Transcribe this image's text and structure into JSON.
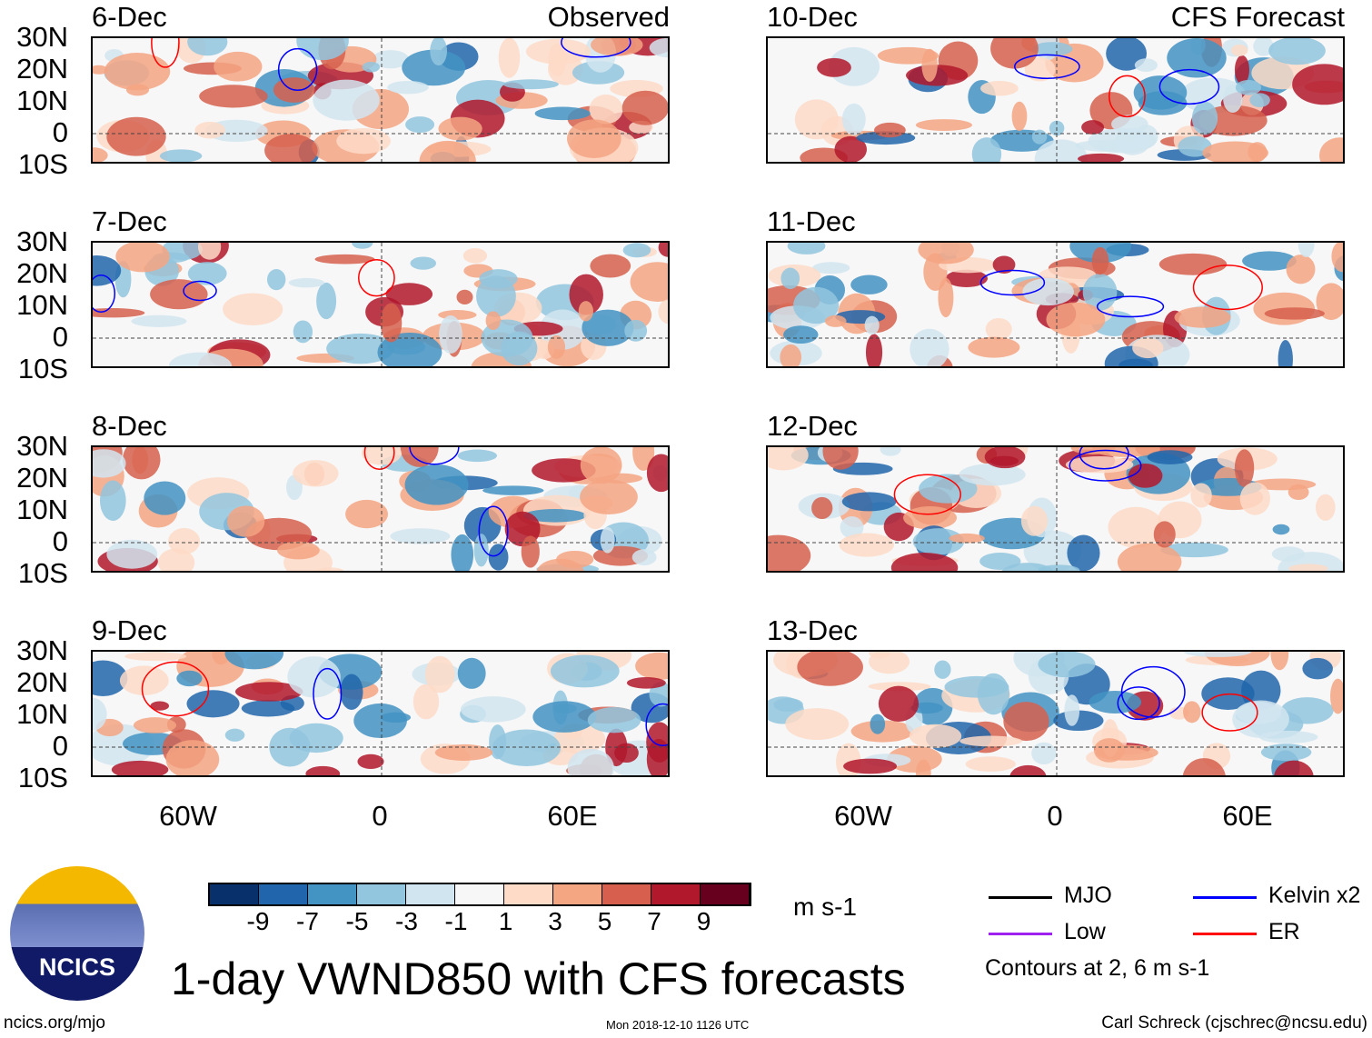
{
  "columns": [
    {
      "label": "Observed",
      "panels": [
        "6-Dec",
        "7-Dec",
        "8-Dec",
        "9-Dec"
      ]
    },
    {
      "label": "CFS Forecast",
      "panels": [
        "10-Dec",
        "11-Dec",
        "12-Dec",
        "13-Dec"
      ]
    }
  ],
  "lat_labels": [
    "30N",
    "20N",
    "10N",
    "0",
    "10S"
  ],
  "lon_labels": [
    "60W",
    "0",
    "60E"
  ],
  "colorbar": {
    "colors": [
      "#08306b",
      "#2166ac",
      "#4393c3",
      "#92c5de",
      "#d1e5f0",
      "#f7f7f7",
      "#fddbc7",
      "#f4a582",
      "#d6604d",
      "#b2182b",
      "#67001f"
    ],
    "ticks": [
      "-9",
      "-7",
      "-5",
      "-3",
      "-1",
      "1",
      "3",
      "5",
      "7",
      "9"
    ],
    "unit": "m s-1"
  },
  "legend": {
    "items": [
      {
        "label": "MJO",
        "color": "#000000"
      },
      {
        "label": "Kelvin x2",
        "color": "#0000ff"
      },
      {
        "label": "Low",
        "color": "#a020f0"
      },
      {
        "label": "ER",
        "color": "#ff0000"
      }
    ],
    "note": "Contours at 2, 6 m s-1"
  },
  "title": "1-day VWND850 with CFS forecasts",
  "logo_text": "NCICS",
  "footer": {
    "left": "ncics.org/mjo",
    "center": "Mon 2018-12-10 1126 UTC",
    "right": "Carl Schreck (cjschrec@ncsu.edu)"
  }
}
